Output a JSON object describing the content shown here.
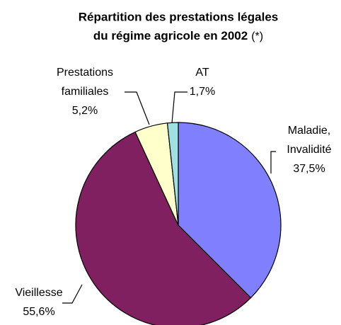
{
  "chart_data": {
    "type": "pie",
    "title": [
      "Répartition des prestations légales",
      "du régime agricole en 2002"
    ],
    "title_note": "(*)",
    "categories": [
      "Maladie, Invalidité",
      "Vieillesse",
      "Prestations familiales",
      "AT"
    ],
    "values": [
      37.5,
      55.6,
      5.2,
      1.7
    ],
    "value_labels": [
      "37,5%",
      "55,6%",
      "5,2%",
      "1,7%"
    ],
    "colors": [
      "#8080ff",
      "#802060",
      "#ffffcc",
      "#a0e0e0"
    ]
  }
}
